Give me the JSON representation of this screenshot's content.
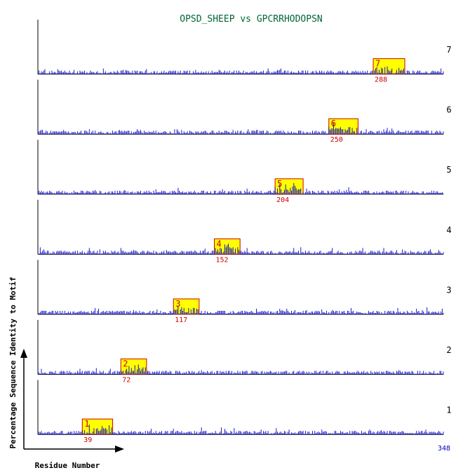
{
  "chart_data": {
    "type": "bar",
    "title": "OPSD_SHEEP vs GPCRRHODOPSN",
    "xlabel": "Residue Number",
    "ylabel": "Percentage Sequence Identity to Motif",
    "sequence_length": 348,
    "x_end_label": "348",
    "panels": [
      {
        "motif": "1",
        "start": 39,
        "start_label": "39",
        "length": 26
      },
      {
        "motif": "2",
        "start": 72,
        "start_label": "72",
        "length": 22
      },
      {
        "motif": "3",
        "start": 117,
        "start_label": "117",
        "length": 22
      },
      {
        "motif": "4",
        "start": 152,
        "start_label": "152",
        "length": 22
      },
      {
        "motif": "5",
        "start": 204,
        "start_label": "204",
        "length": 24
      },
      {
        "motif": "6",
        "start": 250,
        "start_label": "250",
        "length": 25
      },
      {
        "motif": "7",
        "start": 288,
        "start_label": "288",
        "length": 27
      }
    ]
  },
  "colors": {
    "title": "#006633",
    "bars": "#0000cc",
    "motif_fill": "#ffff00",
    "motif_border": "#cc0000",
    "motif_text": "#cc0000",
    "axis": "#000000",
    "x_end_label": "#0000cc"
  }
}
